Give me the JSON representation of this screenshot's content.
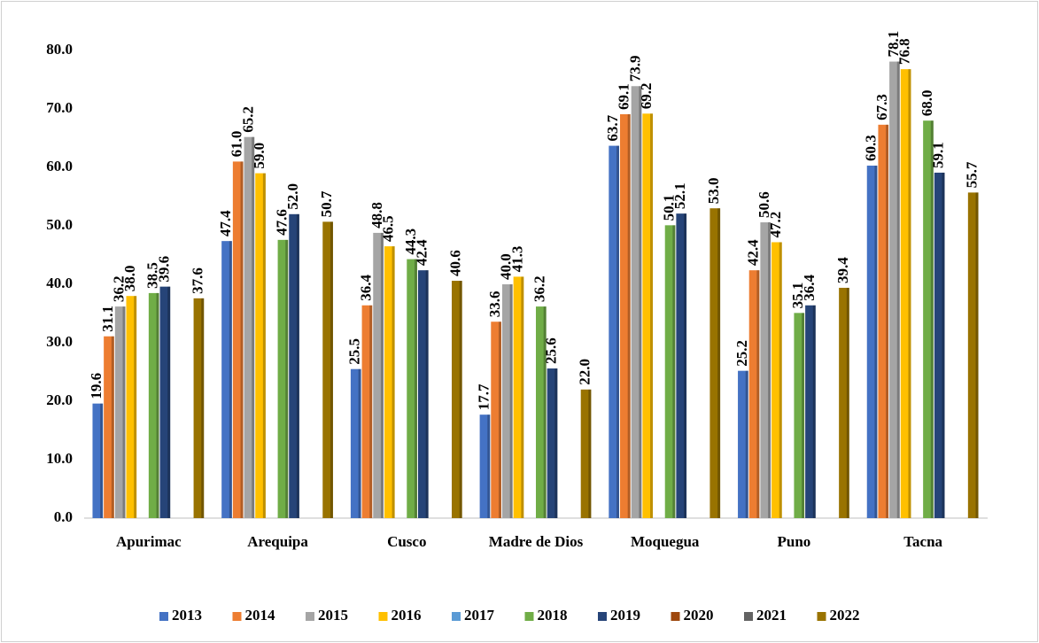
{
  "chart_data": {
    "type": "bar",
    "categories": [
      "Apurimac",
      "Arequipa",
      "Cusco",
      "Madre de Dios",
      "Moquegua",
      "Puno",
      "Tacna"
    ],
    "series": [
      {
        "name": "2013",
        "color": "#4472c4",
        "values": [
          19.6,
          47.4,
          25.5,
          17.7,
          63.7,
          25.2,
          60.3
        ],
        "value_labels": [
          "19.6",
          "47.4",
          "25.5",
          "17.7",
          "63.7",
          "25.2",
          "60.3"
        ]
      },
      {
        "name": "2014",
        "color": "#ed7d31",
        "values": [
          31.1,
          61.0,
          36.4,
          33.6,
          69.1,
          42.4,
          67.3
        ],
        "value_labels": [
          "31.1",
          "61.0",
          "36.4",
          "33.6",
          "69.1",
          "42.4",
          "67.3"
        ]
      },
      {
        "name": "2015",
        "color": "#a5a5a5",
        "values": [
          36.2,
          65.2,
          48.8,
          40.0,
          73.9,
          50.6,
          78.1
        ],
        "value_labels": [
          "36.2",
          "65.2",
          "48.8",
          "40.0",
          "73.9",
          "50.6",
          "78.1"
        ]
      },
      {
        "name": "2016",
        "color": "#ffc000",
        "values": [
          38.0,
          59.0,
          46.5,
          41.3,
          69.2,
          47.2,
          76.8
        ],
        "value_labels": [
          "38.0",
          "59.0",
          "46.5",
          "41.3",
          "69.2",
          "47.2",
          "76.8"
        ]
      },
      {
        "name": "2017",
        "color": "#5b9bd5",
        "values": [
          null,
          null,
          null,
          null,
          null,
          null,
          null
        ]
      },
      {
        "name": "2018",
        "color": "#70ad47",
        "values": [
          38.5,
          47.6,
          44.3,
          36.2,
          50.1,
          35.1,
          68.0
        ],
        "value_labels": [
          "38.5",
          "47.6",
          "44.3",
          "36.2",
          "50.1",
          "35.1",
          "68.0"
        ]
      },
      {
        "name": "2019",
        "color": "#264478",
        "values": [
          39.6,
          52.0,
          42.4,
          25.6,
          52.1,
          36.4,
          59.1
        ],
        "value_labels": [
          "39.6",
          "52.0",
          "42.4",
          "25.6",
          "52.1",
          "36.4",
          "59.1"
        ]
      },
      {
        "name": "2020",
        "color": "#9e480e",
        "values": [
          null,
          null,
          null,
          null,
          null,
          null,
          null
        ]
      },
      {
        "name": "2021",
        "color": "#636363",
        "values": [
          null,
          null,
          null,
          null,
          null,
          null,
          null
        ]
      },
      {
        "name": "2022",
        "color": "#997300",
        "values": [
          37.6,
          50.7,
          40.6,
          22.0,
          53.0,
          39.4,
          55.7
        ],
        "value_labels": [
          "37.6",
          "50.7",
          "40.6",
          "22.0",
          "53.0",
          "39.4",
          "55.7"
        ]
      }
    ],
    "ylim": [
      0,
      80
    ],
    "yticks": [
      {
        "value": 0,
        "label": "0.0"
      },
      {
        "value": 10,
        "label": "10.0"
      },
      {
        "value": 20,
        "label": "20.0"
      },
      {
        "value": 30,
        "label": "30.0"
      },
      {
        "value": 40,
        "label": "40.0"
      },
      {
        "value": 50,
        "label": "50.0"
      },
      {
        "value": 60,
        "label": "60.0"
      },
      {
        "value": 70,
        "label": "70.0"
      },
      {
        "value": 80,
        "label": "80.0"
      }
    ],
    "grid": false,
    "legend": "bottom"
  }
}
